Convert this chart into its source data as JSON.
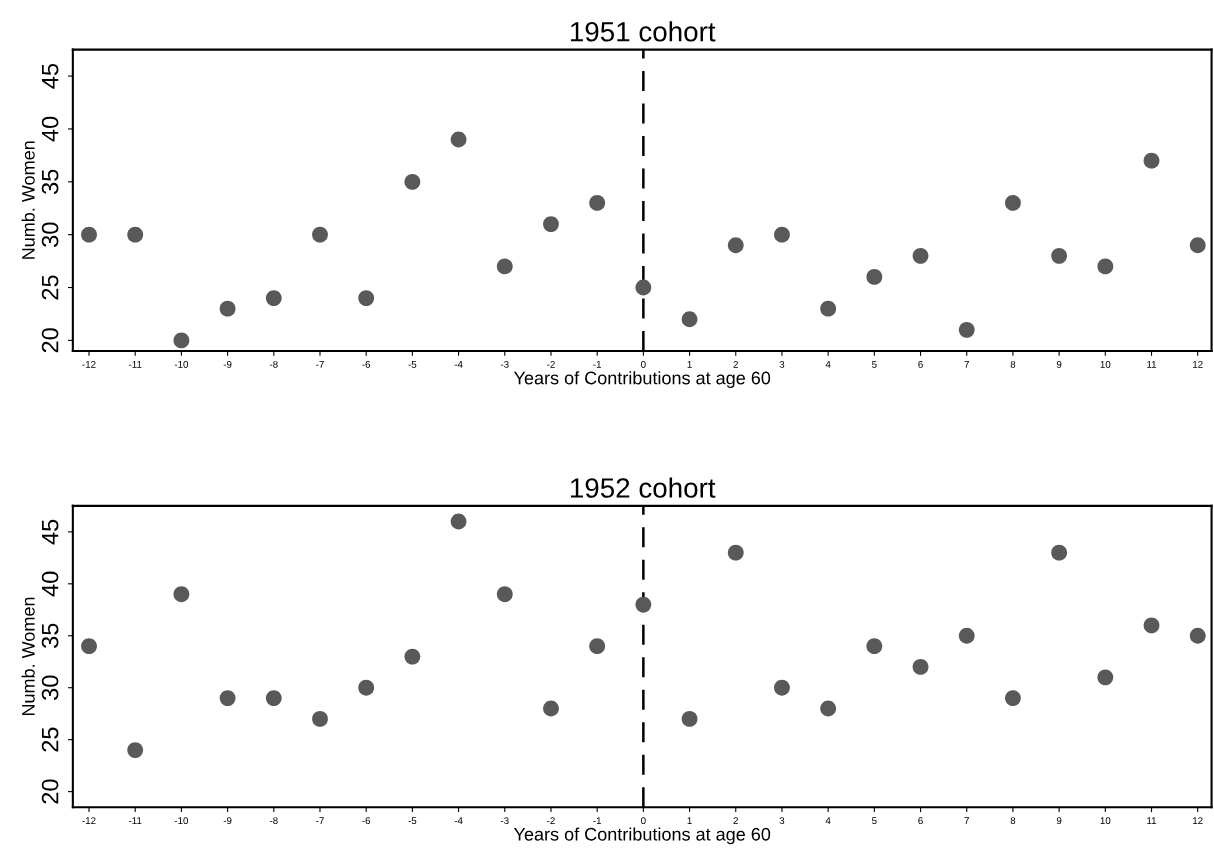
{
  "chart_data": [
    {
      "type": "scatter",
      "title": "1951 cohort",
      "xlabel": "Years of Contributions at age 60",
      "ylabel": "Numb. Women",
      "x": [
        -12,
        -11,
        -10,
        -9,
        -8,
        -7,
        -6,
        -5,
        -4,
        -3,
        -2,
        -1,
        0,
        1,
        2,
        3,
        4,
        5,
        6,
        7,
        8,
        9,
        10,
        11,
        12
      ],
      "series": [
        {
          "color": "#595959",
          "values": [
            30,
            30,
            20,
            23,
            24,
            30,
            24,
            35,
            39,
            27,
            31,
            33,
            25,
            22,
            29,
            30,
            23,
            26,
            28,
            21,
            33,
            28,
            27,
            37,
            29
          ]
        }
      ],
      "xlim": [
        -12.35,
        12.3
      ],
      "xticks": [
        -12,
        -11,
        -10,
        -9,
        -8,
        -7,
        -6,
        -5,
        -4,
        -3,
        -2,
        -1,
        0,
        1,
        2,
        3,
        4,
        5,
        6,
        7,
        8,
        9,
        10,
        11,
        12
      ],
      "ylim": [
        19,
        47.5
      ],
      "yticks": [
        20,
        25,
        30,
        35,
        40,
        45
      ],
      "marker": "circle",
      "grid": false,
      "ref_lines": [
        {
          "axis": "x",
          "value": 0,
          "color": "#000000",
          "line_style": "dashed"
        }
      ]
    },
    {
      "type": "scatter",
      "title": "1952 cohort",
      "xlabel": "Years of Contributions at age 60",
      "ylabel": "Numb. Women",
      "x": [
        -12,
        -11,
        -10,
        -9,
        -8,
        -7,
        -6,
        -5,
        -4,
        -3,
        -2,
        -1,
        0,
        1,
        2,
        3,
        4,
        5,
        6,
        7,
        8,
        9,
        10,
        11,
        12
      ],
      "series": [
        {
          "color": "#595959",
          "values": [
            34,
            24,
            39,
            29,
            29,
            27,
            30,
            33,
            46,
            39,
            28,
            34,
            38,
            27,
            43,
            30,
            28,
            34,
            32,
            35,
            29,
            43,
            31,
            36,
            35
          ]
        }
      ],
      "xlim": [
        -12.35,
        12.3
      ],
      "xticks": [
        -12,
        -11,
        -10,
        -9,
        -8,
        -7,
        -6,
        -5,
        -4,
        -3,
        -2,
        -1,
        0,
        1,
        2,
        3,
        4,
        5,
        6,
        7,
        8,
        9,
        10,
        11,
        12
      ],
      "ylim": [
        18.5,
        47.5
      ],
      "yticks": [
        20,
        25,
        30,
        35,
        40,
        45
      ],
      "marker": "circle",
      "grid": false,
      "ref_lines": [
        {
          "axis": "x",
          "value": 0,
          "color": "#000000",
          "line_style": "dashed"
        }
      ]
    }
  ]
}
